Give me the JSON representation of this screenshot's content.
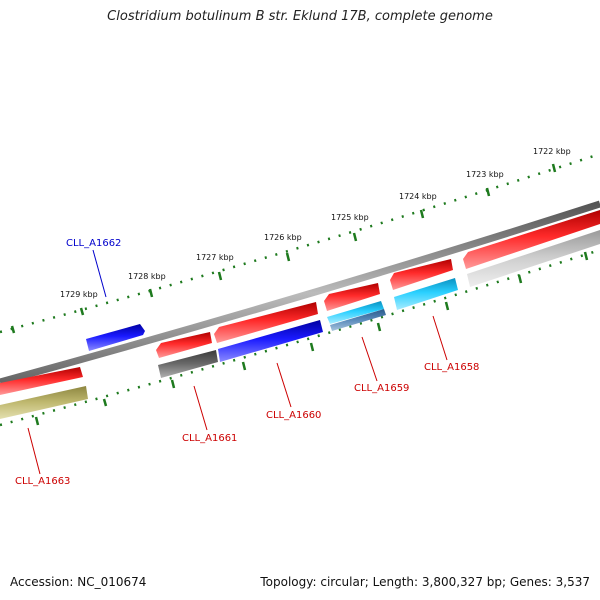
{
  "title": "Clostridium botulinum B str. Eklund 17B, complete genome",
  "footer": {
    "accession": "Accession: NC_010674",
    "info": "Topology: circular; Length: 3,800,327 bp; Genes: 3,537"
  },
  "colors": {
    "backbone": "#8a8a8a",
    "ruler": "#1e7a1e",
    "red": "#ee1111",
    "blue": "#1111dd",
    "cyan": "#22bbee",
    "steel": "#4a7aaa",
    "gray_dark": "#666666",
    "gray_light": "#c8c8c8",
    "olive": "#bdb66a",
    "label_red": "#cc0000",
    "label_blue": "#0000cc"
  },
  "ruler_ticks": [
    "1722 kbp",
    "1723 kbp",
    "1724 kbp",
    "1725 kbp",
    "1726 kbp",
    "1727 kbp",
    "1728 kbp",
    "1729 kbp"
  ],
  "gene_labels": [
    {
      "name": "CLL_A1658",
      "color": "red"
    },
    {
      "name": "CLL_A1659",
      "color": "red"
    },
    {
      "name": "CLL_A1660",
      "color": "red"
    },
    {
      "name": "CLL_A1661",
      "color": "red"
    },
    {
      "name": "CLL_A1662",
      "color": "blue"
    },
    {
      "name": "CLL_A1663",
      "color": "red"
    }
  ]
}
